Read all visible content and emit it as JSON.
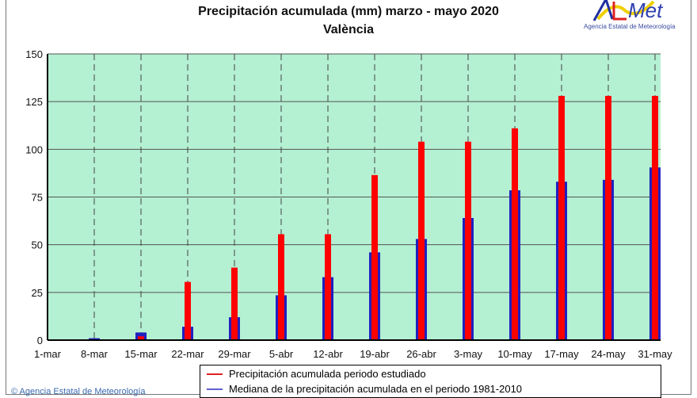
{
  "logo": {
    "text": "AEMet",
    "subtitle": "Agencia Estatal de Meteorología"
  },
  "credit": "© Agencia Estatal de Meteorología",
  "chart_data": {
    "type": "bar",
    "title": "Precipitación acumulada (mm) marzo - mayo 2020",
    "subtitle": "València",
    "categories": [
      "1-mar",
      "8-mar",
      "15-mar",
      "22-mar",
      "29-mar",
      "5-abr",
      "12-abr",
      "19-abr",
      "26-abr",
      "3-may",
      "10-may",
      "17-may",
      "24-may",
      "31-may"
    ],
    "series": [
      {
        "name": "Precipitación acumulada periodo estudiado",
        "color": "#ff0000",
        "values": [
          0,
          0,
          2,
          30.5,
          38,
          55.5,
          55.5,
          86.5,
          104,
          104,
          111,
          128,
          128,
          128
        ]
      },
      {
        "name": "Mediana de la precipitación acumulada en el periodo 1981-2010",
        "color": "#2020c0",
        "values": [
          0,
          1,
          4,
          7,
          12,
          23.5,
          33,
          46,
          53,
          64,
          78.5,
          83,
          84,
          90.5
        ]
      }
    ],
    "yticks": [
      0,
      25,
      50,
      75,
      100,
      125,
      150
    ],
    "ylim": [
      0,
      150
    ],
    "grid": true,
    "plot_background": "#b4f0d2",
    "legend_position": "bottom"
  }
}
